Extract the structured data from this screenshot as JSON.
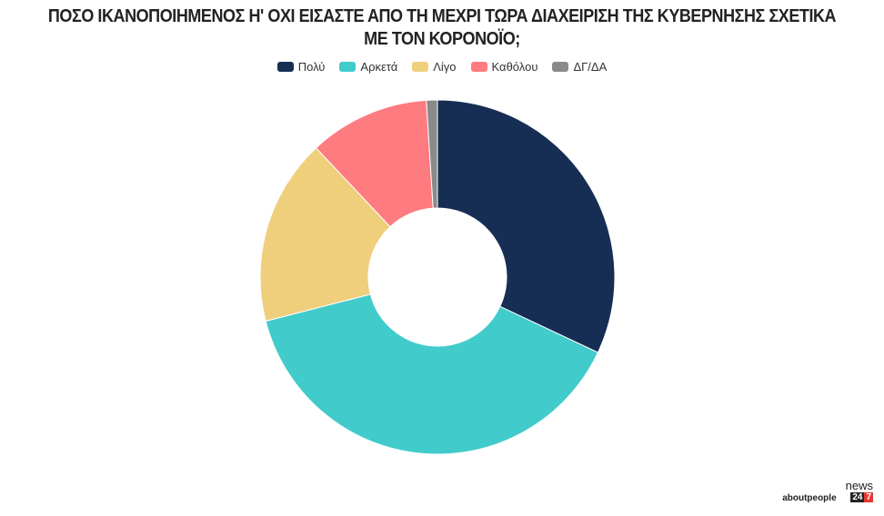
{
  "chart_data": {
    "type": "donut",
    "title": "ΠΟΣΟ ΙΚΑΝΟΠΟΙΗΜΕΝΟΣ Η' ΟΧΙ ΕΙΣΑΣΤΕ ΑΠΟ ΤΗ ΜΕΧΡΙ ΤΩΡΑ ΔΙΑΧΕΙΡΙΣΗ ΤΗΣ ΚΥΒΕΡΝΗΣΗΣ ΣΧΕΤΙΚΑ ΜΕ ΤΟΝ ΚΟΡΟΝΟΪΟ;",
    "categories": [
      "Πολύ",
      "Αρκετά",
      "Λίγο",
      "Καθόλου",
      "ΔΓ/ΔΑ"
    ],
    "values": [
      32,
      39,
      17,
      11,
      1
    ],
    "colors": [
      "#162e54",
      "#41cbca",
      "#efcf7b",
      "#fe7b80",
      "#8a8a8a"
    ],
    "legend": "top"
  },
  "branding": {
    "logo_left": "aboutpeople",
    "logo_right_word": "news",
    "logo_right_num1": "24",
    "logo_right_num2": "7"
  }
}
